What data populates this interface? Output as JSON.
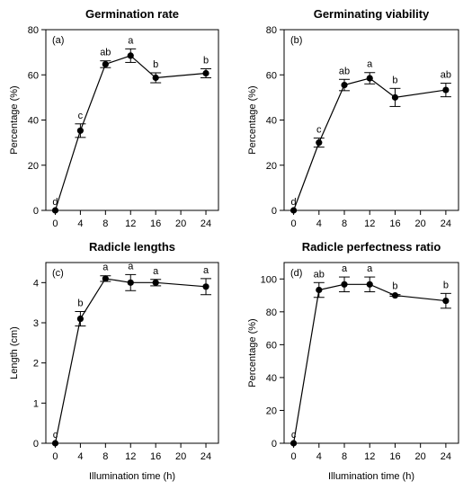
{
  "figure": {
    "xlabel": "Illumination time (h)"
  },
  "chart_data": [
    {
      "type": "line",
      "title": "Germination rate",
      "panel": "(a)",
      "xlabel": "",
      "ylabel": "Percentage (%)",
      "x": [
        0,
        4,
        8,
        12,
        16,
        24
      ],
      "x_ticks": [
        "0",
        "4",
        "8",
        "12",
        "16",
        "20",
        "24"
      ],
      "ylim": [
        0,
        80
      ],
      "y_ticks": [
        0,
        20,
        40,
        60,
        80
      ],
      "values": [
        0,
        35.3,
        64.7,
        68.5,
        58.7,
        60.7
      ],
      "errors": [
        0,
        3.0,
        1.5,
        3.0,
        2.2,
        2.0
      ],
      "letters": [
        "d",
        "c",
        "ab",
        "a",
        "b",
        "b"
      ],
      "grid": false
    },
    {
      "type": "line",
      "title": "Germinating viability",
      "panel": "(b)",
      "xlabel": "",
      "ylabel": "Percentage (%)",
      "x": [
        0,
        4,
        8,
        12,
        16,
        24
      ],
      "x_ticks": [
        "0",
        "4",
        "8",
        "12",
        "16",
        "20",
        "24"
      ],
      "ylim": [
        0,
        80
      ],
      "y_ticks": [
        0,
        20,
        40,
        60,
        80
      ],
      "values": [
        0,
        30.0,
        55.5,
        58.5,
        50.0,
        53.3
      ],
      "errors": [
        0,
        2.0,
        2.5,
        2.5,
        4.0,
        3.0
      ],
      "letters": [
        "d",
        "c",
        "ab",
        "a",
        "b",
        "ab"
      ],
      "grid": false
    },
    {
      "type": "line",
      "title": "Radicle lengths",
      "panel": "(c)",
      "xlabel": "Illumination time (h)",
      "ylabel": "Length (cm)",
      "x": [
        0,
        4,
        8,
        12,
        16,
        24
      ],
      "x_ticks": [
        "0",
        "4",
        "8",
        "12",
        "16",
        "20",
        "24"
      ],
      "ylim": [
        0,
        4.5
      ],
      "y_ticks": [
        0,
        1,
        2,
        3,
        4
      ],
      "values": [
        0,
        3.1,
        4.1,
        4.0,
        4.0,
        3.9
      ],
      "errors": [
        0,
        0.18,
        0.07,
        0.2,
        0.08,
        0.2
      ],
      "letters": [
        "c",
        "b",
        "a",
        "a",
        "a",
        "a"
      ],
      "grid": false
    },
    {
      "type": "line",
      "title": "Radicle perfectness ratio",
      "panel": "(d)",
      "xlabel": "Illumination time (h)",
      "ylabel": "Percentage (%)",
      "x": [
        0,
        4,
        8,
        12,
        16,
        24
      ],
      "x_ticks": [
        "0",
        "4",
        "8",
        "12",
        "16",
        "20",
        "24"
      ],
      "ylim": [
        0,
        110
      ],
      "y_ticks": [
        0,
        20,
        40,
        60,
        80,
        100
      ],
      "values": [
        0,
        93.3,
        96.7,
        96.7,
        90.0,
        86.7
      ],
      "errors": [
        0,
        4.5,
        4.5,
        4.5,
        0.5,
        4.5
      ],
      "letters": [
        "c",
        "ab",
        "a",
        "a",
        "b",
        "b"
      ],
      "grid": false
    }
  ]
}
